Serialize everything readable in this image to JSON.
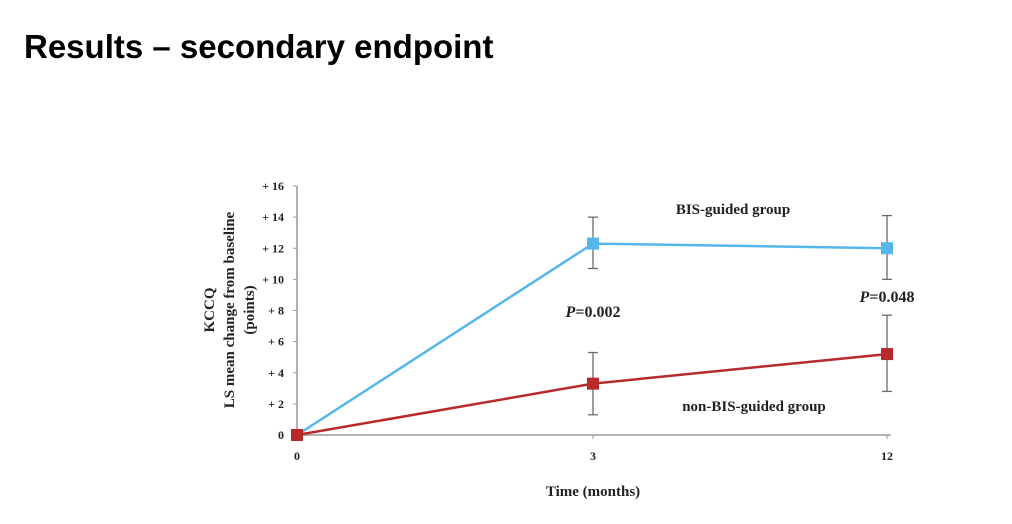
{
  "slide": {
    "title": "Results – secondary endpoint"
  },
  "chart_data": {
    "type": "line",
    "x": [
      "0",
      "3",
      "12"
    ],
    "xlabel": "Time (months)",
    "ylabel_lines": [
      "KCCQ",
      "LS mean change from baseline",
      "(points)"
    ],
    "ylim": [
      0,
      16
    ],
    "yticks": [
      "0",
      "+ 2",
      "+ 4",
      "+ 6",
      "+ 8",
      "+ 10",
      "+ 12",
      "+ 14",
      "+ 16"
    ],
    "grid": false,
    "series": [
      {
        "name": "BIS-guided group",
        "color": "#55b6ea",
        "values": [
          0,
          12.3,
          12.0
        ],
        "err_low": [
          null,
          10.7,
          10.0
        ],
        "err_high": [
          null,
          14.0,
          14.1
        ]
      },
      {
        "name": "non-BIS-guided group",
        "color": "#b8292b",
        "values": [
          0,
          3.3,
          5.2
        ],
        "err_low": [
          null,
          1.3,
          2.8
        ],
        "err_high": [
          null,
          5.3,
          7.7
        ]
      }
    ],
    "annotations": [
      {
        "italic": "P",
        "text": "=0.002"
      },
      {
        "italic": "P",
        "text": "=0.048"
      }
    ]
  }
}
